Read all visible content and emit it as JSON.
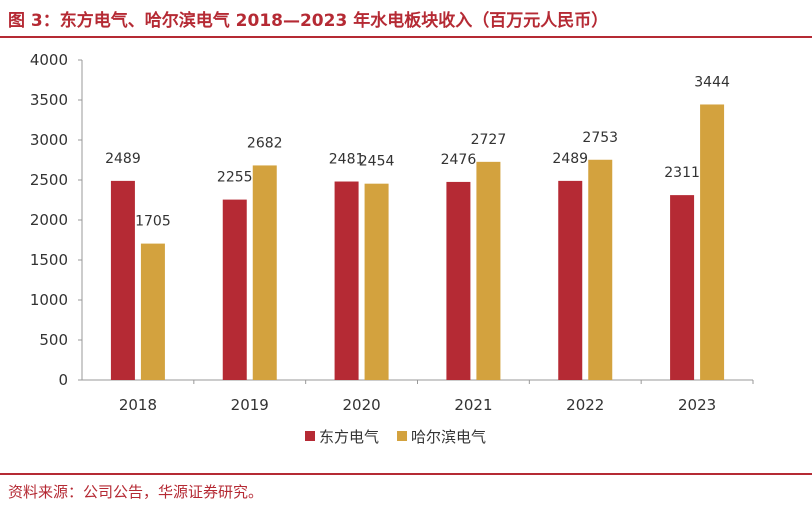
{
  "header": {
    "title": "图 3：东方电气、哈尔滨电气 2018—2023 年水电板块收入（百万元人民币）"
  },
  "footer": {
    "source": "资料来源：公司公告，华源证券研究。"
  },
  "chart_data": {
    "type": "bar",
    "title": "图 3：东方电气、哈尔滨电气 2018—2023 年水电板块收入（百万元人民币）",
    "xlabel": "",
    "ylabel": "",
    "categories": [
      "2018",
      "2019",
      "2020",
      "2021",
      "2022",
      "2023"
    ],
    "series": [
      {
        "name": "东方电气",
        "color": "#b52a34",
        "values": [
          2489,
          2255,
          2481,
          2476,
          2489,
          2311
        ]
      },
      {
        "name": "哈尔滨电气",
        "color": "#d3a23e",
        "values": [
          1705,
          2682,
          2454,
          2727,
          2753,
          3444
        ]
      }
    ],
    "ylim": [
      0,
      4000
    ],
    "yticks": [
      0,
      500,
      1000,
      1500,
      2000,
      2500,
      3000,
      3500,
      4000
    ],
    "grid": false,
    "legend": "bottom-center",
    "data_labels": true
  }
}
